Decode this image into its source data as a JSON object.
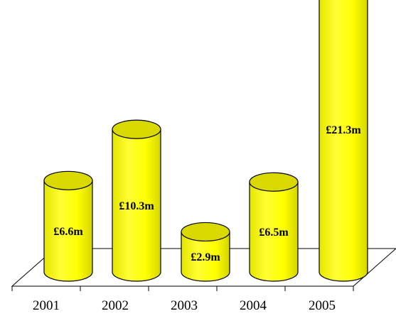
{
  "chart_data": {
    "type": "bar",
    "style": "3d-cylinder",
    "categories": [
      "2001",
      "2002",
      "2003",
      "2004",
      "2005"
    ],
    "values": [
      6.6,
      10.3,
      2.9,
      6.5,
      21.3
    ],
    "data_labels": [
      "£6.6m",
      "£10.3m",
      "£2.9m",
      "£6.5m",
      "£21.3m"
    ],
    "title": "",
    "xlabel": "",
    "ylabel": "",
    "grid": false,
    "legend": "none",
    "colors": {
      "bar_face": "#ffff00",
      "bar_top": "#d9d900",
      "bar_outline": "#000000",
      "floor_line": "#000000"
    }
  }
}
